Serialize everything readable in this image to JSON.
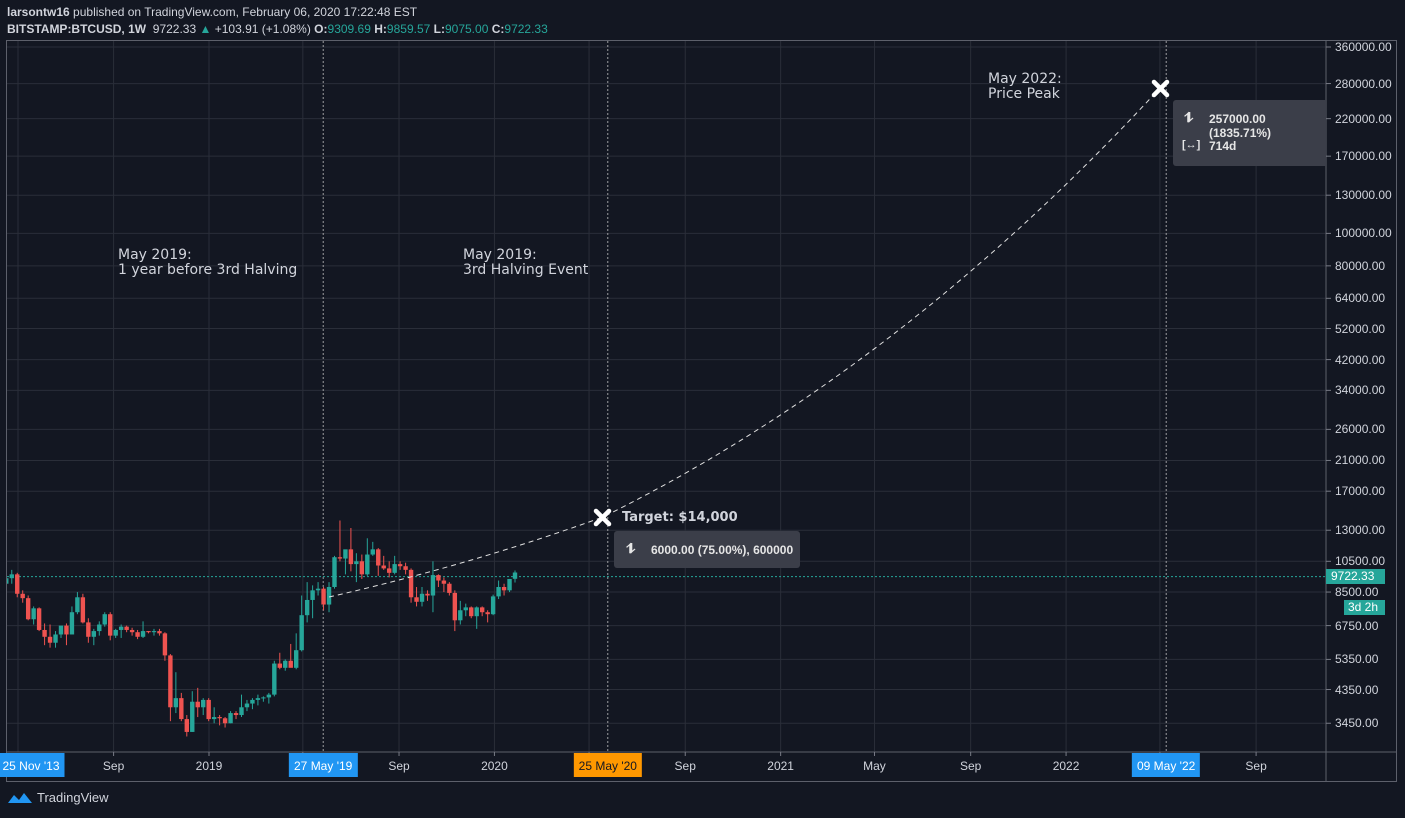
{
  "header": {
    "author": "larsontw16",
    "published": "published on TradingView.com, February 06, 2020 17:22:48 EST",
    "symbol": "BITSTAMP:BTCUSD, 1W",
    "last": "9722.33",
    "change": "+103.91 (+1.08%)",
    "o_label": "O:",
    "o": "9309.69",
    "h_label": "H:",
    "h": "9859.57",
    "l_label": "L:",
    "l": "9075.00",
    "c_label": "C:",
    "c": "9722.33"
  },
  "annotations": {
    "a1": "May 2019:\n1 year before 3rd Halving",
    "a2": "May 2019:\n3rd Halving Event",
    "a3": "May 2022:\nPrice Peak",
    "target": "Target: $14,000",
    "target_measure": "6000.00 (75.00%), 600000",
    "peak_measure": "257000.00 (1835.71%)",
    "peak_days": "714d"
  },
  "price_axis": {
    "ticks": [
      {
        "v": 360000,
        "label": "360000.00"
      },
      {
        "v": 280000,
        "label": "280000.00"
      },
      {
        "v": 220000,
        "label": "220000.00"
      },
      {
        "v": 170000,
        "label": "170000.00"
      },
      {
        "v": 130000,
        "label": "130000.00"
      },
      {
        "v": 100000,
        "label": "100000.00"
      },
      {
        "v": 80000,
        "label": "80000.00"
      },
      {
        "v": 64000,
        "label": "64000.00"
      },
      {
        "v": 52000,
        "label": "52000.00"
      },
      {
        "v": 42000,
        "label": "42000.00"
      },
      {
        "v": 34000,
        "label": "34000.00"
      },
      {
        "v": 26000,
        "label": "26000.00"
      },
      {
        "v": 21000,
        "label": "21000.00"
      },
      {
        "v": 17000,
        "label": "17000.00"
      },
      {
        "v": 13000,
        "label": "13000.00"
      },
      {
        "v": 10500,
        "label": "10500.00"
      },
      {
        "v": 8500,
        "label": "8500.00"
      },
      {
        "v": 6750,
        "label": "6750.00"
      },
      {
        "v": 5350,
        "label": "5350.00"
      },
      {
        "v": 4350,
        "label": "4350.00"
      },
      {
        "v": 3450,
        "label": "3450.00"
      }
    ],
    "current_price": "9722.33",
    "countdown": "3d 2h",
    "scale": "log"
  },
  "time_axis": {
    "ticks": [
      {
        "label": "Sep",
        "date": "2018-09-01"
      },
      {
        "label": "2019",
        "date": "2019-01-01"
      },
      {
        "label": "",
        "date": "2019-05-01"
      },
      {
        "label": "Sep",
        "date": "2019-09-01"
      },
      {
        "label": "2020",
        "date": "2020-01-01"
      },
      {
        "label": "",
        "date": "2020-05-01"
      },
      {
        "label": "Sep",
        "date": "2020-09-01"
      },
      {
        "label": "2021",
        "date": "2021-01-01"
      },
      {
        "label": "May",
        "date": "2021-05-01"
      },
      {
        "label": "Sep",
        "date": "2021-09-01"
      },
      {
        "label": "2022",
        "date": "2022-01-01"
      },
      {
        "label": "",
        "date": "2022-05-01"
      },
      {
        "label": "Sep",
        "date": "2022-09-01"
      }
    ],
    "markers": [
      {
        "label": "25 Nov '13",
        "color": "#2196f3"
      },
      {
        "label": "27 May '19",
        "date": "2019-05-27",
        "color": "#2196f3"
      },
      {
        "label": "25 May '20",
        "date": "2020-05-25",
        "color": "#ff9800"
      },
      {
        "label": "09 May '22",
        "date": "2022-05-09",
        "color": "#2196f3"
      }
    ]
  },
  "colors": {
    "up": "#26a69a",
    "down": "#ef5350",
    "background": "#131722",
    "grid": "#2a2e39",
    "accent": "#2196f3"
  },
  "chart_data": {
    "type": "candlestick",
    "interval": "1W",
    "symbol": "BITSTAMP:BTCUSD",
    "yscale": "log",
    "ylim": [
      3200,
      360000
    ],
    "candles": [
      [
        9000,
        9500,
        8800,
        9350
      ],
      [
        9350,
        9900,
        9000,
        9600
      ],
      [
        9600,
        9700,
        8200,
        8400
      ],
      [
        8400,
        8600,
        7900,
        8150
      ],
      [
        8150,
        8300,
        7000,
        7050
      ],
      [
        7050,
        7700,
        6800,
        7600
      ],
      [
        7600,
        7650,
        6500,
        6550
      ],
      [
        6550,
        6850,
        5900,
        6250
      ],
      [
        6250,
        6800,
        5800,
        6000
      ],
      [
        6000,
        6500,
        5800,
        6350
      ],
      [
        6350,
        6650,
        6200,
        6750
      ],
      [
        6750,
        6850,
        5900,
        6350
      ],
      [
        6350,
        7700,
        6350,
        7400
      ],
      [
        7400,
        8500,
        7300,
        8200
      ],
      [
        8200,
        8400,
        6850,
        6900
      ],
      [
        6900,
        7100,
        6000,
        6250
      ],
      [
        6250,
        6600,
        5900,
        6500
      ],
      [
        6500,
        6950,
        6300,
        6800
      ],
      [
        6800,
        7400,
        6700,
        7300
      ],
      [
        7300,
        7400,
        6100,
        6300
      ],
      [
        6300,
        6600,
        6200,
        6550
      ],
      [
        6550,
        6800,
        6200,
        6700
      ],
      [
        6700,
        6750,
        6450,
        6550
      ],
      [
        6550,
        6650,
        6300,
        6450
      ],
      [
        6450,
        6550,
        6150,
        6250
      ],
      [
        6250,
        6950,
        6200,
        6500
      ],
      [
        6500,
        6500,
        6400,
        6450
      ],
      [
        6450,
        6600,
        6300,
        6500
      ],
      [
        6500,
        6600,
        6300,
        6400
      ],
      [
        6400,
        6450,
        5300,
        5500
      ],
      [
        5500,
        5550,
        3500,
        3850
      ],
      [
        3850,
        4900,
        3700,
        4100
      ],
      [
        4100,
        4250,
        3500,
        3550
      ],
      [
        3550,
        3650,
        3150,
        3250
      ],
      [
        3250,
        4300,
        3250,
        4000
      ],
      [
        4000,
        4400,
        3600,
        3850
      ],
      [
        3850,
        4100,
        3650,
        4050
      ],
      [
        4050,
        4100,
        3500,
        3550
      ],
      [
        3550,
        3850,
        3450,
        3600
      ],
      [
        3600,
        3650,
        3400,
        3570
      ],
      [
        3570,
        3600,
        3350,
        3450
      ],
      [
        3450,
        3750,
        3450,
        3700
      ],
      [
        3700,
        3750,
        3550,
        3650
      ],
      [
        3650,
        4200,
        3600,
        3850
      ],
      [
        3850,
        4050,
        3750,
        3950
      ],
      [
        3950,
        4100,
        3800,
        4050
      ],
      [
        4050,
        4200,
        3900,
        4100
      ],
      [
        4100,
        4150,
        4000,
        4120
      ],
      [
        4120,
        4250,
        3950,
        4200
      ],
      [
        4200,
        5300,
        4150,
        5200
      ],
      [
        5200,
        5600,
        5000,
        5050
      ],
      [
        5050,
        5350,
        4950,
        5300
      ],
      [
        5300,
        5950,
        5100,
        5050
      ],
      [
        5050,
        6400,
        5000,
        5700
      ],
      [
        5700,
        8300,
        5650,
        7250
      ],
      [
        7250,
        9100,
        6900,
        8050
      ],
      [
        8050,
        8900,
        7100,
        8600
      ],
      [
        8600,
        9100,
        8300,
        8700
      ],
      [
        8700,
        8800,
        7500,
        7800
      ],
      [
        7800,
        9100,
        7400,
        8800
      ],
      [
        8800,
        10900,
        8700,
        10800
      ],
      [
        10800,
        13900,
        10500,
        10700
      ],
      [
        10700,
        11300,
        9600,
        11400
      ],
      [
        11400,
        13200,
        9800,
        10300
      ],
      [
        10300,
        11100,
        9100,
        10500
      ],
      [
        10500,
        11000,
        9300,
        9600
      ],
      [
        9600,
        12300,
        9500,
        11000
      ],
      [
        11000,
        12000,
        10900,
        11400
      ],
      [
        11400,
        11500,
        9500,
        10200
      ],
      [
        10200,
        10900,
        9900,
        10000
      ],
      [
        10000,
        10500,
        9400,
        9700
      ],
      [
        9700,
        10900,
        9600,
        10300
      ],
      [
        10300,
        10500,
        9900,
        10150
      ],
      [
        10150,
        10400,
        9600,
        9900
      ],
      [
        9900,
        10000,
        7900,
        8200
      ],
      [
        8200,
        8800,
        7700,
        7950
      ],
      [
        7950,
        8800,
        7700,
        8400
      ],
      [
        8400,
        8600,
        8000,
        8300
      ],
      [
        8300,
        10500,
        7400,
        9550
      ],
      [
        9550,
        9600,
        8800,
        9200
      ],
      [
        9200,
        9400,
        8500,
        9000
      ],
      [
        9000,
        9100,
        8300,
        8450
      ],
      [
        8450,
        8600,
        6500,
        7000
      ],
      [
        7000,
        8000,
        6800,
        7500
      ],
      [
        7500,
        7850,
        7200,
        7650
      ],
      [
        7650,
        7700,
        7100,
        7200
      ],
      [
        7200,
        7700,
        6600,
        7650
      ],
      [
        7650,
        7700,
        7200,
        7400
      ],
      [
        7400,
        7500,
        6900,
        7300
      ],
      [
        7300,
        8350,
        7250,
        8250
      ],
      [
        8250,
        9200,
        8100,
        8800
      ],
      [
        8800,
        9000,
        8300,
        8600
      ],
      [
        8600,
        9300,
        8500,
        9300
      ],
      [
        9309.69,
        9859.57,
        9075,
        9722.33
      ]
    ]
  },
  "footer": {
    "brand": "TradingView"
  }
}
